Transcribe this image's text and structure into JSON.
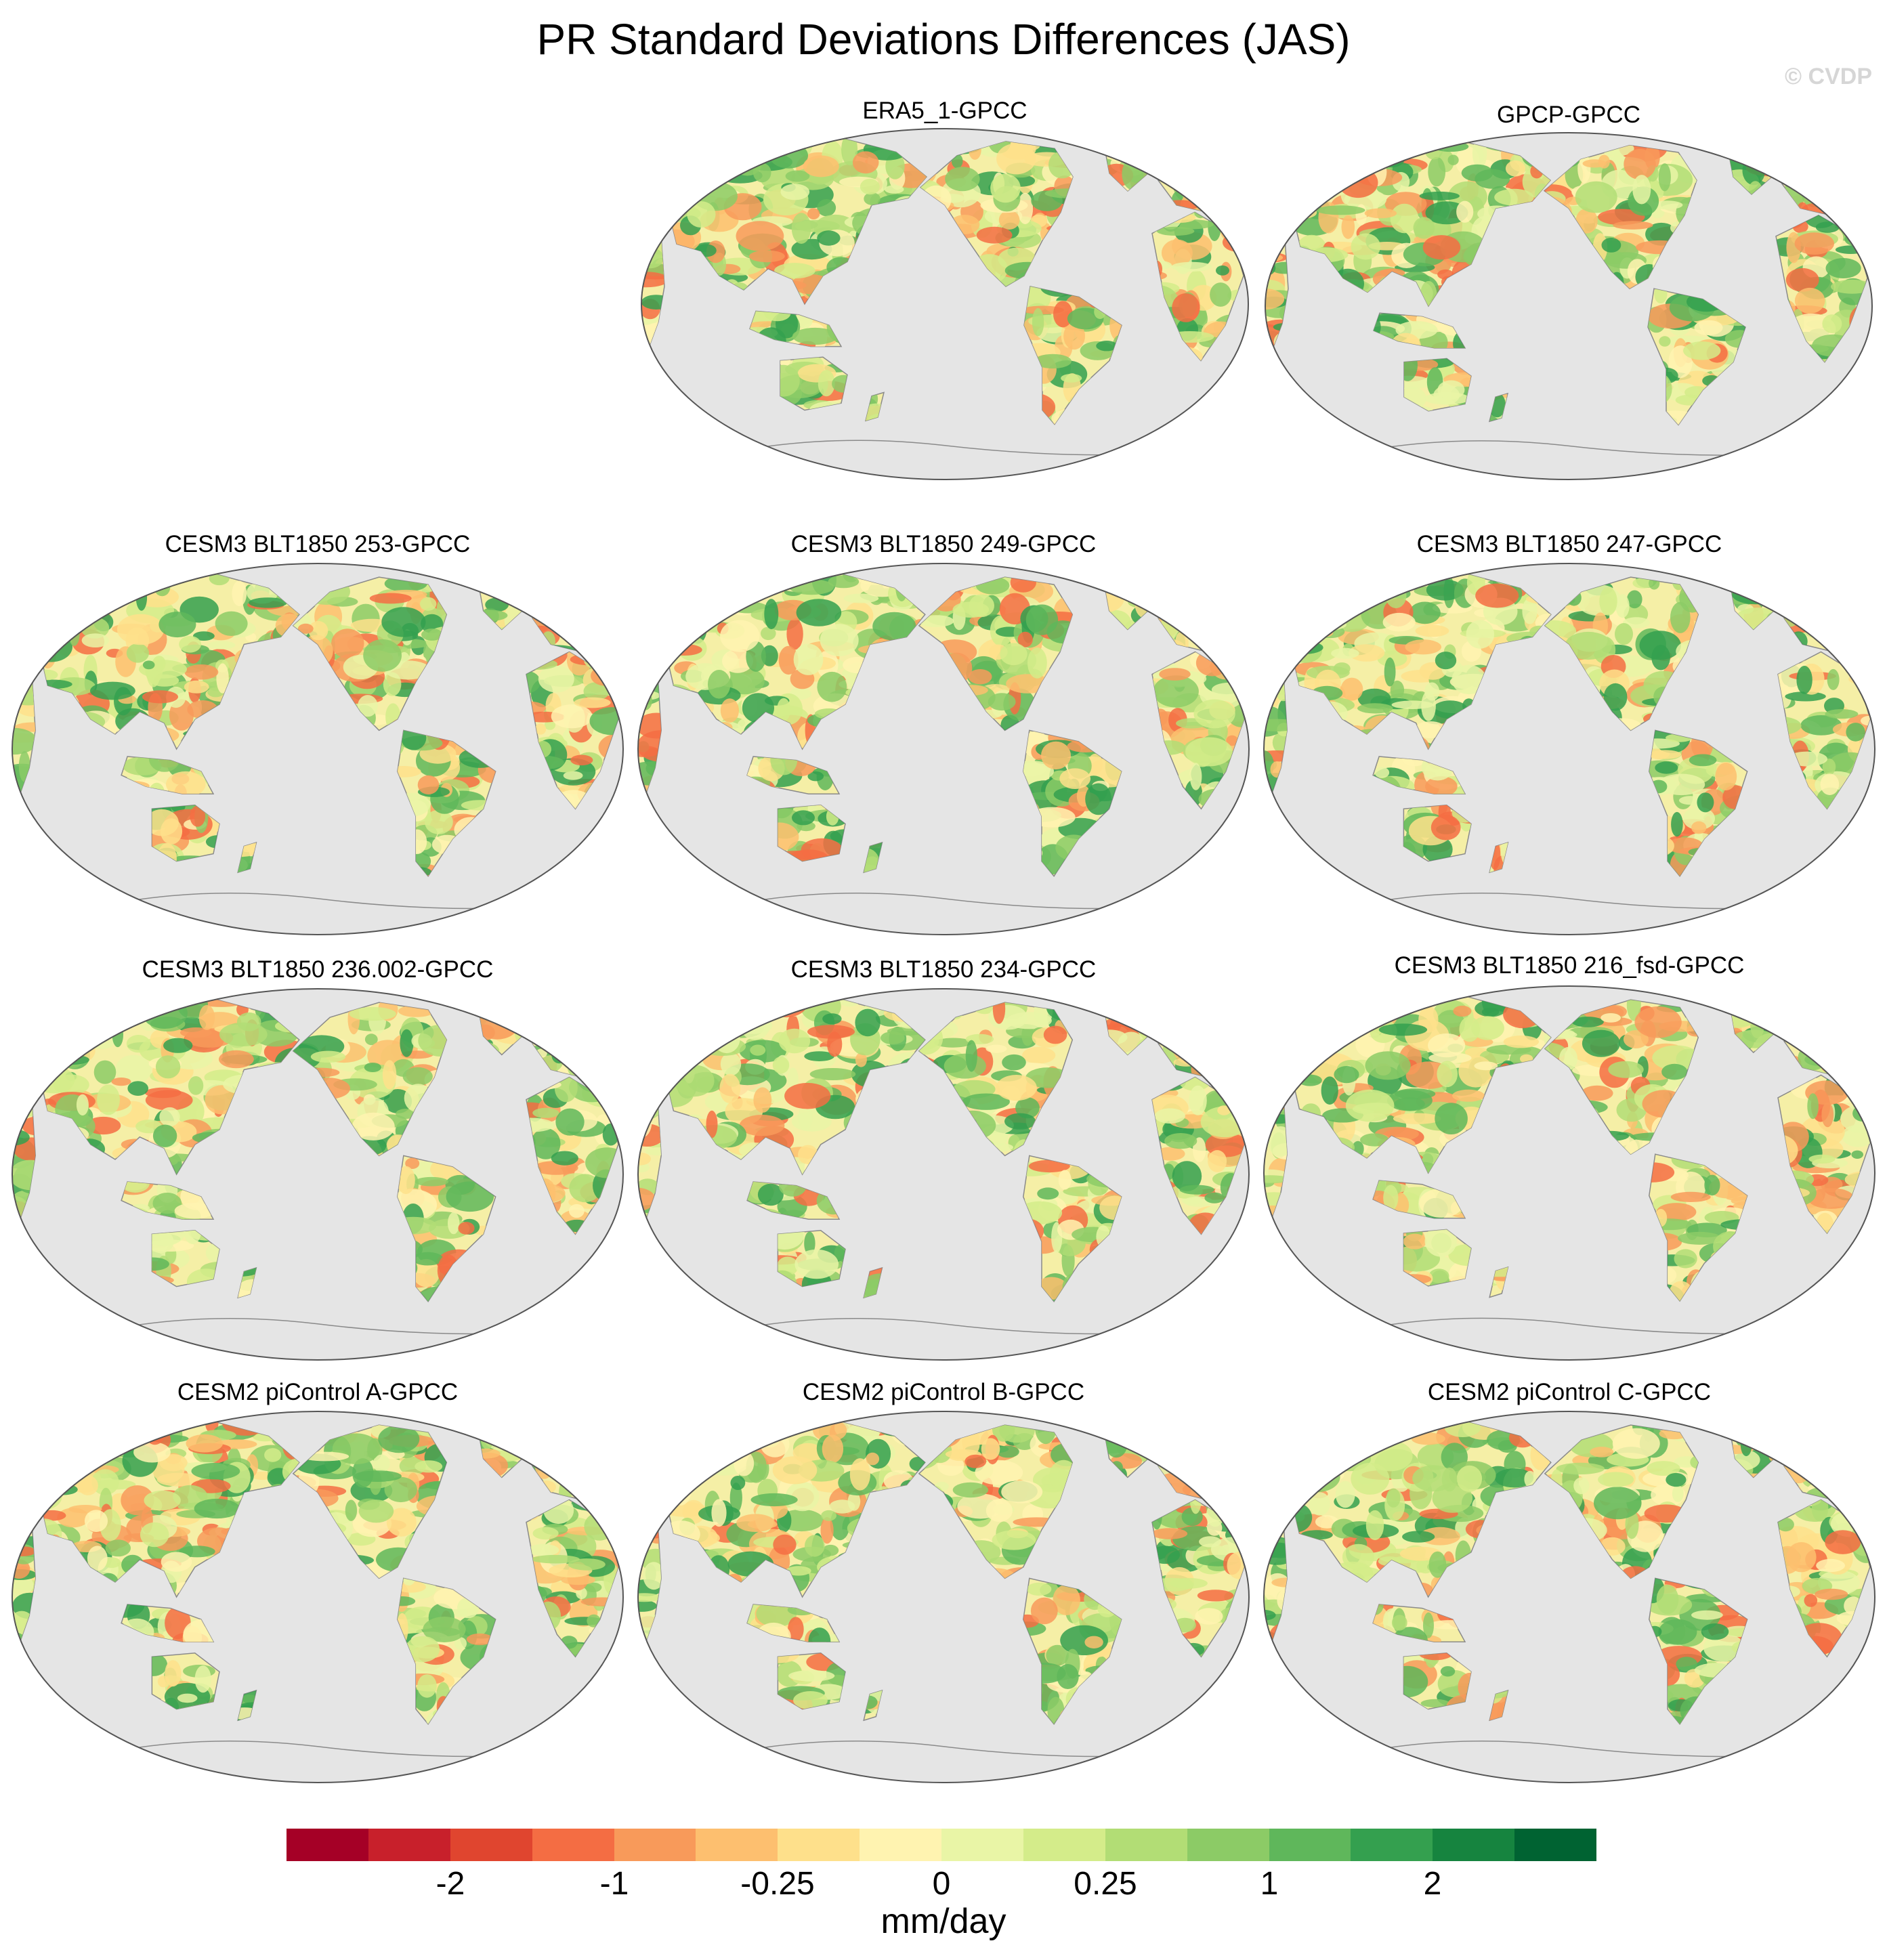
{
  "title": "PR Standard Deviations Differences (JAS)",
  "copyright": "© CVDP",
  "colors": {
    "ocean": "#e5e5e5",
    "coast": "#8a8a8a",
    "frame": "#555555",
    "land_neutral": "#f5efa6"
  },
  "panels": [
    {
      "title": "ERA5_1-GPCC"
    },
    {
      "title": "GPCP-GPCC"
    },
    {
      "title": "CESM3 BLT1850 253-GPCC"
    },
    {
      "title": "CESM3 BLT1850 249-GPCC"
    },
    {
      "title": "CESM3 BLT1850 247-GPCC"
    },
    {
      "title": "CESM3 BLT1850 236.002-GPCC"
    },
    {
      "title": "CESM3 BLT1850 234-GPCC"
    },
    {
      "title": "CESM3 BLT1850 216_fsd-GPCC"
    },
    {
      "title": "CESM2 piControl A-GPCC"
    },
    {
      "title": "CESM2 piControl B-GPCC"
    },
    {
      "title": "CESM2 piControl C-GPCC"
    }
  ],
  "colorbar": {
    "units": "mm/day",
    "colors": [
      "#a50026",
      "#c8202b",
      "#e0452f",
      "#f46d43",
      "#f89a5a",
      "#fdbf6f",
      "#fee08b",
      "#fff3b0",
      "#e9f5a6",
      "#d4ec8a",
      "#b2dd75",
      "#8ccb66",
      "#5fb75b",
      "#34a04f",
      "#16843f",
      "#006332"
    ],
    "tick_labels": [
      "-2",
      "-1",
      "-0.25",
      "0",
      "0.25",
      "1",
      "2"
    ]
  }
}
